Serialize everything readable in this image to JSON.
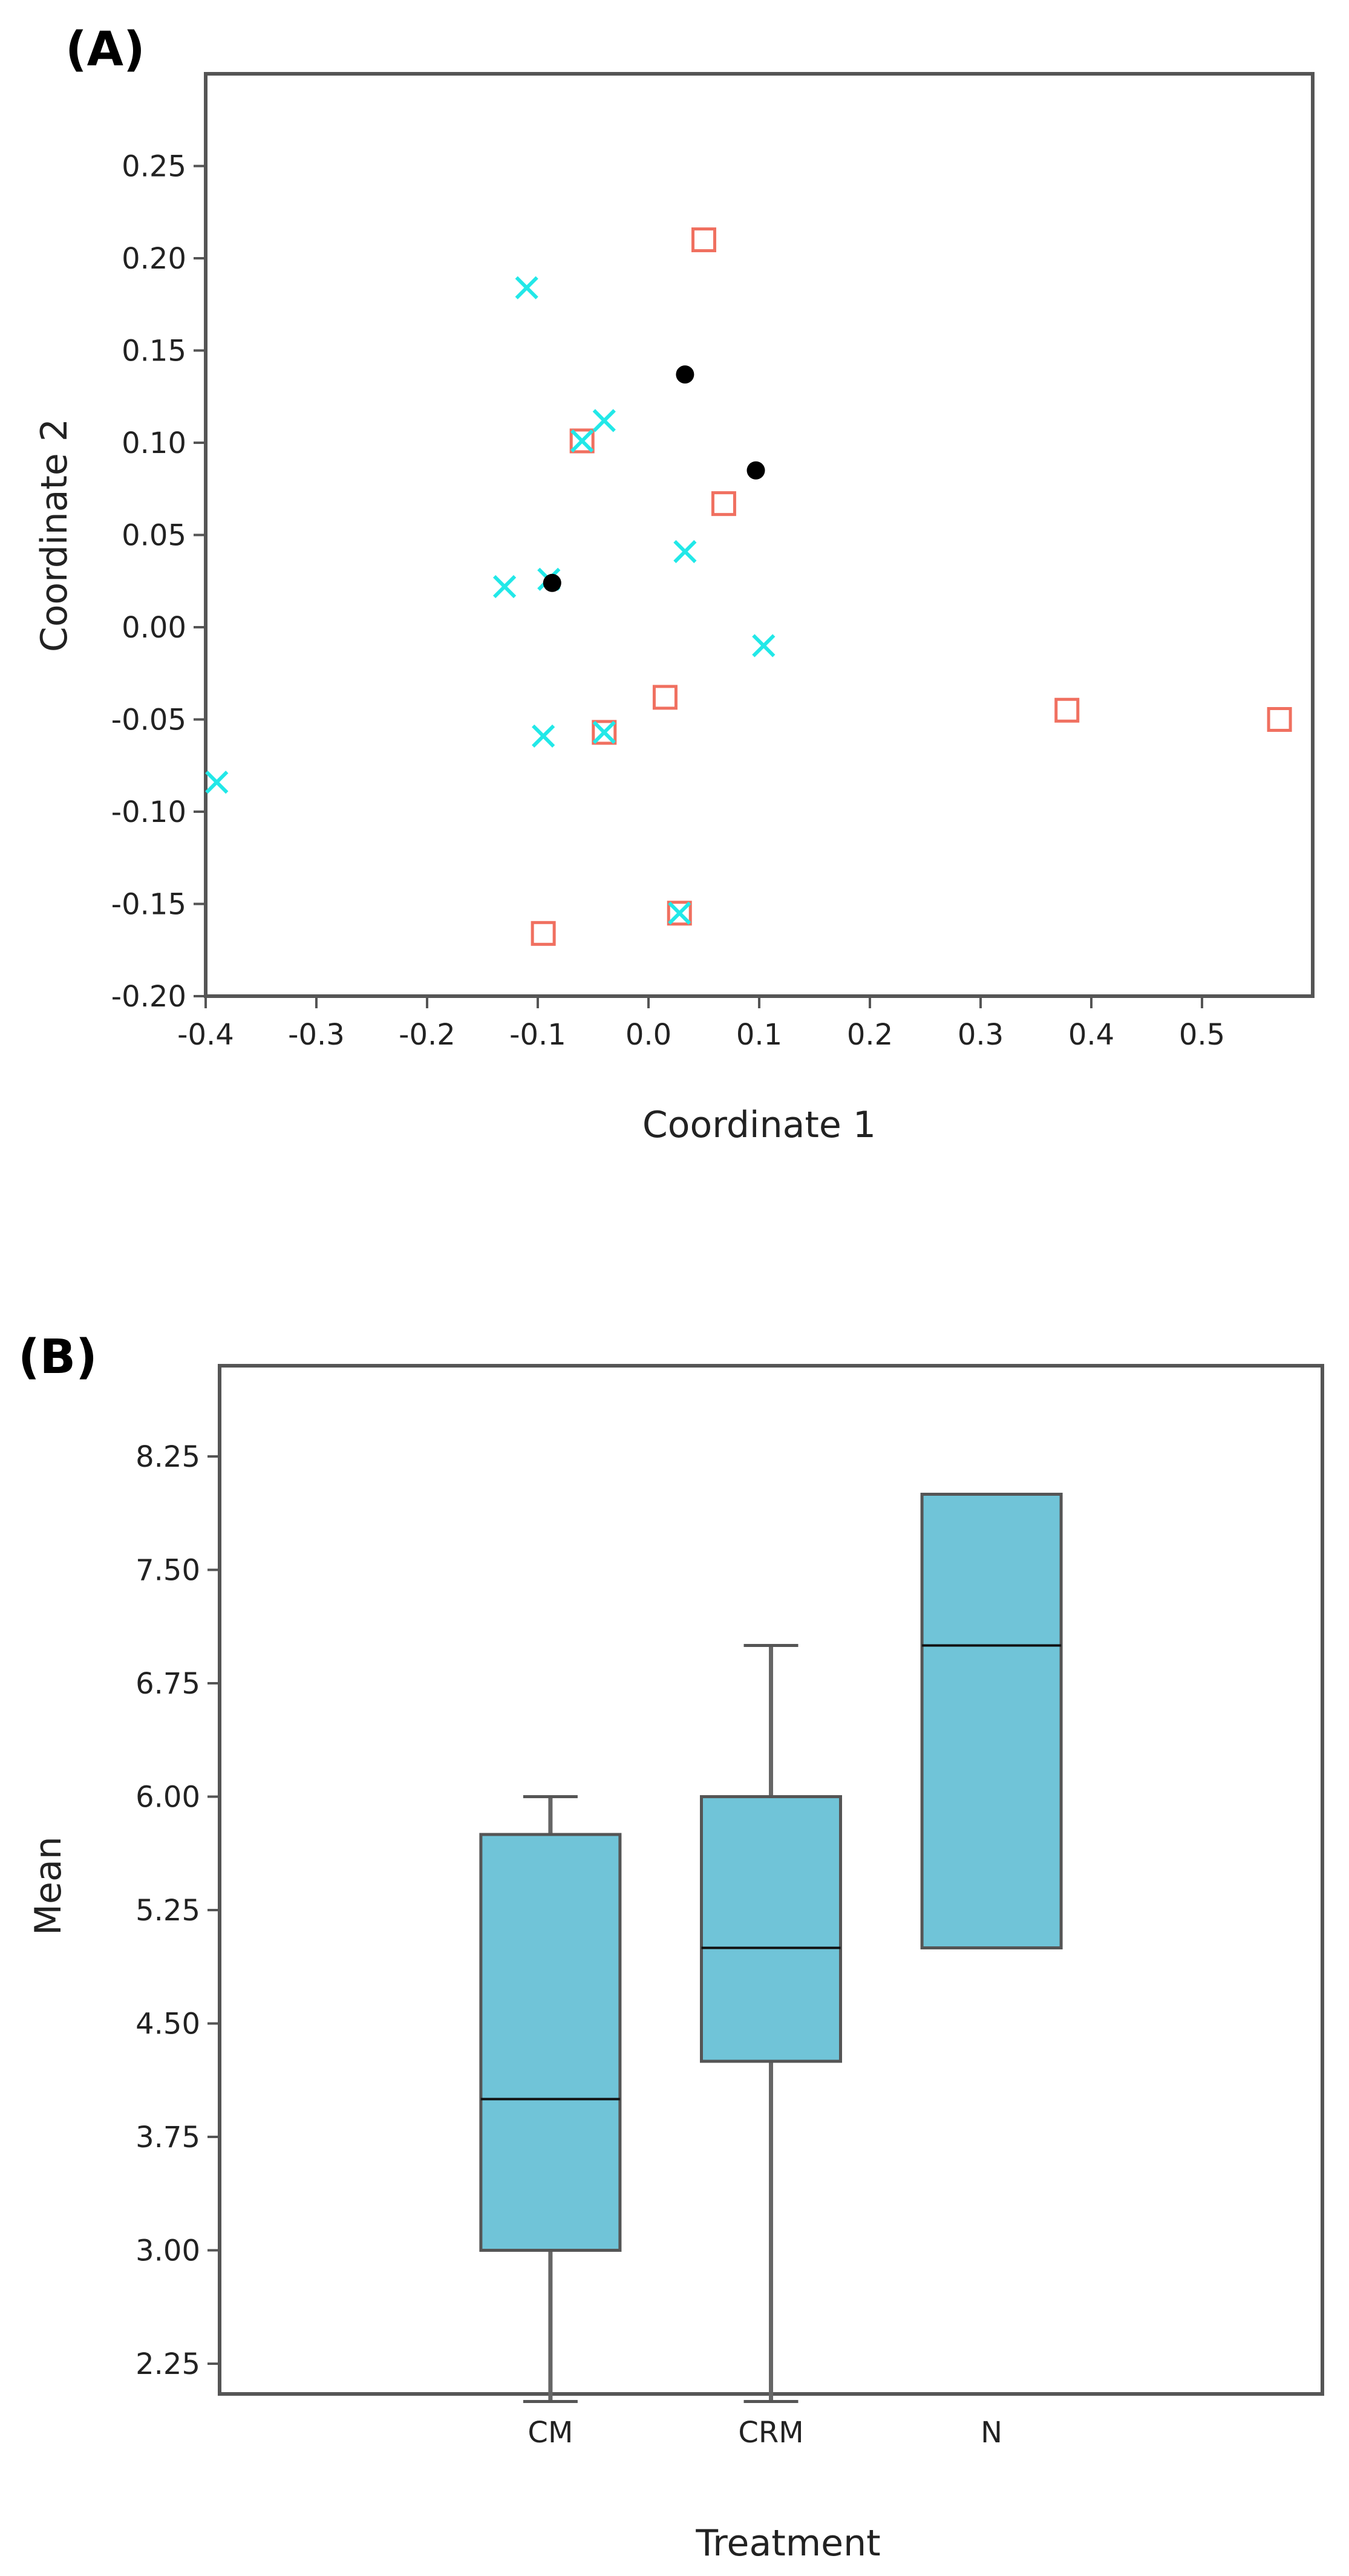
{
  "chart_data": [
    {
      "type": "scatter",
      "panel_label": "(A)",
      "xlabel": "Coordinate 1",
      "ylabel": "Coordinate 2",
      "xlim": [
        -0.4,
        0.6
      ],
      "ylim": [
        -0.2,
        0.3
      ],
      "x_ticks": [
        -0.4,
        -0.3,
        -0.2,
        -0.1,
        0.0,
        0.1,
        0.2,
        0.3,
        0.4,
        0.5
      ],
      "x_tick_labels": [
        "-0.4",
        "-0.3",
        "-0.2",
        "-0.1",
        "0.0",
        "0.1",
        "0.2",
        "0.3",
        "0.4",
        "0.5"
      ],
      "y_ticks": [
        -0.2,
        -0.15,
        -0.1,
        -0.05,
        0.0,
        0.05,
        0.1,
        0.15,
        0.2,
        0.25
      ],
      "y_tick_labels": [
        "-0.20",
        "-0.15",
        "-0.10",
        "-0.05",
        "0.00",
        "0.05",
        "0.10",
        "0.15",
        "0.20",
        "0.25"
      ],
      "grid": false,
      "series": [
        {
          "name": "square",
          "marker": "square",
          "color": "#f07060",
          "points": [
            [
              0.05,
              0.21
            ],
            [
              -0.06,
              0.101
            ],
            [
              0.068,
              0.067
            ],
            [
              -0.04,
              -0.057
            ],
            [
              0.015,
              -0.038
            ],
            [
              0.378,
              -0.045
            ],
            [
              0.57,
              -0.05
            ],
            [
              0.028,
              -0.155
            ],
            [
              -0.095,
              -0.166
            ]
          ]
        },
        {
          "name": "cross",
          "marker": "x",
          "color": "#22e8e8",
          "points": [
            [
              -0.11,
              0.184
            ],
            [
              -0.04,
              0.112
            ],
            [
              -0.06,
              0.101
            ],
            [
              0.033,
              0.041
            ],
            [
              -0.09,
              0.026
            ],
            [
              -0.13,
              0.022
            ],
            [
              0.104,
              -0.01
            ],
            [
              -0.095,
              -0.059
            ],
            [
              -0.04,
              -0.057
            ],
            [
              -0.39,
              -0.084
            ],
            [
              0.028,
              -0.155
            ]
          ]
        },
        {
          "name": "dot",
          "marker": "circle",
          "color": "#000000",
          "points": [
            [
              0.033,
              0.137
            ],
            [
              0.097,
              0.085
            ],
            [
              -0.087,
              0.024
            ]
          ]
        }
      ]
    },
    {
      "type": "box",
      "panel_label": "(B)",
      "xlabel": "Treatment",
      "ylabel": "Mean",
      "categories": [
        "CM",
        "CRM",
        "N"
      ],
      "ylim": [
        2.05,
        8.85
      ],
      "y_ticks": [
        2.25,
        3.0,
        3.75,
        4.5,
        5.25,
        6.0,
        6.75,
        7.5,
        8.25
      ],
      "y_tick_labels": [
        "2.25",
        "3.00",
        "3.75",
        "4.50",
        "5.25",
        "6.00",
        "6.75",
        "7.50",
        "8.25"
      ],
      "fill_color": "#70c4d8",
      "boxes": [
        {
          "category": "CM",
          "min": 2.0,
          "q1": 3.0,
          "median": 4.0,
          "q3": 5.75,
          "max": 6.0
        },
        {
          "category": "CRM",
          "min": 2.0,
          "q1": 4.25,
          "median": 5.0,
          "q3": 6.0,
          "max": 7.0
        },
        {
          "category": "N",
          "min": 5.0,
          "q1": 5.0,
          "median": 7.0,
          "q3": 8.0,
          "max": 8.0
        }
      ]
    }
  ]
}
